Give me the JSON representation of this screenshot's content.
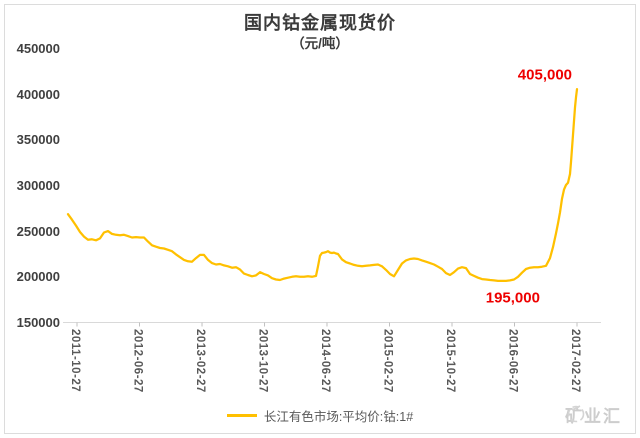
{
  "chart_data": {
    "type": "line",
    "title": "国内钴金属现货价",
    "subtitle": "（元/吨）",
    "ylabel": "",
    "xlabel": "",
    "ylim": [
      150000,
      450000
    ],
    "y_tick_step": 50000,
    "grid": false,
    "legend_position": "bottom",
    "line_color": "#FFC000",
    "annotation_color": "#EE0000",
    "y_ticks": [
      {
        "label": "450000",
        "value": 450000
      },
      {
        "label": "400000",
        "value": 400000
      },
      {
        "label": "350000",
        "value": 350000
      },
      {
        "label": "300000",
        "value": 300000
      },
      {
        "label": "250000",
        "value": 250000
      },
      {
        "label": "200000",
        "value": 200000
      },
      {
        "label": "150000",
        "value": 150000
      }
    ],
    "x_ticks": [
      {
        "label": "2011-10-27",
        "f": 0.0177
      },
      {
        "label": "2012-06-27",
        "f": 0.1405
      },
      {
        "label": "2013-02-27",
        "f": 0.2633
      },
      {
        "label": "2013-10-27",
        "f": 0.3861
      },
      {
        "label": "2014-06-27",
        "f": 0.5088
      },
      {
        "label": "2015-02-27",
        "f": 0.6316
      },
      {
        "label": "2015-10-27",
        "f": 0.7544
      },
      {
        "label": "2016-06-27",
        "f": 0.8772
      },
      {
        "label": "2017-02-27",
        "f": 1.0
      }
    ],
    "series": [
      {
        "name": "长江有色市场:平均价:钴:1#",
        "color": "#FFC000",
        "points": [
          [
            0.0,
            268000
          ],
          [
            0.0079,
            262000
          ],
          [
            0.0157,
            255500
          ],
          [
            0.0236,
            248500
          ],
          [
            0.0314,
            243500
          ],
          [
            0.0393,
            240000
          ],
          [
            0.0472,
            240500
          ],
          [
            0.055,
            239500
          ],
          [
            0.0629,
            241500
          ],
          [
            0.0707,
            248000
          ],
          [
            0.0786,
            249500
          ],
          [
            0.0864,
            246500
          ],
          [
            0.0943,
            245500
          ],
          [
            0.1022,
            245000
          ],
          [
            0.11,
            245500
          ],
          [
            0.1179,
            244000
          ],
          [
            0.1257,
            242500
          ],
          [
            0.1336,
            243000
          ],
          [
            0.1415,
            242500
          ],
          [
            0.1493,
            242500
          ],
          [
            0.1572,
            238000
          ],
          [
            0.165,
            234000
          ],
          [
            0.1729,
            232500
          ],
          [
            0.1808,
            231000
          ],
          [
            0.1886,
            230500
          ],
          [
            0.1965,
            229000
          ],
          [
            0.2043,
            227500
          ],
          [
            0.2122,
            224000
          ],
          [
            0.22,
            221000
          ],
          [
            0.2279,
            218000
          ],
          [
            0.2358,
            216500
          ],
          [
            0.2436,
            216000
          ],
          [
            0.2515,
            220000
          ],
          [
            0.2593,
            223500
          ],
          [
            0.2672,
            223500
          ],
          [
            0.275,
            218000
          ],
          [
            0.2829,
            214500
          ],
          [
            0.2908,
            213000
          ],
          [
            0.2986,
            213500
          ],
          [
            0.3065,
            212000
          ],
          [
            0.3143,
            211000
          ],
          [
            0.3222,
            209500
          ],
          [
            0.3301,
            210000
          ],
          [
            0.3379,
            207500
          ],
          [
            0.3458,
            203000
          ],
          [
            0.3536,
            201500
          ],
          [
            0.3615,
            200000
          ],
          [
            0.3693,
            201000
          ],
          [
            0.3772,
            204500
          ],
          [
            0.3851,
            202500
          ],
          [
            0.3929,
            201000
          ],
          [
            0.4008,
            198000
          ],
          [
            0.4086,
            196500
          ],
          [
            0.4165,
            196000
          ],
          [
            0.4244,
            197500
          ],
          [
            0.4322,
            198500
          ],
          [
            0.4401,
            199500
          ],
          [
            0.4479,
            200000
          ],
          [
            0.4558,
            199500
          ],
          [
            0.4637,
            199500
          ],
          [
            0.4715,
            200000
          ],
          [
            0.4794,
            199500
          ],
          [
            0.4872,
            200500
          ],
          [
            0.4912,
            211000
          ],
          [
            0.4951,
            222500
          ],
          [
            0.499,
            225500
          ],
          [
            0.5029,
            226000
          ],
          [
            0.5069,
            226500
          ],
          [
            0.5108,
            227500
          ],
          [
            0.5147,
            226000
          ],
          [
            0.5186,
            225500
          ],
          [
            0.5226,
            226000
          ],
          [
            0.5265,
            225000
          ],
          [
            0.5305,
            224500
          ],
          [
            0.5383,
            218500
          ],
          [
            0.5462,
            215500
          ],
          [
            0.554,
            214000
          ],
          [
            0.5619,
            212500
          ],
          [
            0.5698,
            211500
          ],
          [
            0.5776,
            211000
          ],
          [
            0.5855,
            211500
          ],
          [
            0.5933,
            212000
          ],
          [
            0.6012,
            212500
          ],
          [
            0.6091,
            213000
          ],
          [
            0.6169,
            211000
          ],
          [
            0.6248,
            207000
          ],
          [
            0.6326,
            202500
          ],
          [
            0.6405,
            200000
          ],
          [
            0.6483,
            207000
          ],
          [
            0.6562,
            214000
          ],
          [
            0.6641,
            217500
          ],
          [
            0.6719,
            219000
          ],
          [
            0.6798,
            219500
          ],
          [
            0.6876,
            219000
          ],
          [
            0.6955,
            217500
          ],
          [
            0.7034,
            216000
          ],
          [
            0.7112,
            214500
          ],
          [
            0.7191,
            213000
          ],
          [
            0.7269,
            210500
          ],
          [
            0.7348,
            208000
          ],
          [
            0.7426,
            203500
          ],
          [
            0.7505,
            201500
          ],
          [
            0.7584,
            204500
          ],
          [
            0.7662,
            208500
          ],
          [
            0.7741,
            210000
          ],
          [
            0.7819,
            209000
          ],
          [
            0.7898,
            202500
          ],
          [
            0.7976,
            200500
          ],
          [
            0.8055,
            198500
          ],
          [
            0.8134,
            197000
          ],
          [
            0.8212,
            196500
          ],
          [
            0.8291,
            196000
          ],
          [
            0.8369,
            195500
          ],
          [
            0.8448,
            195000
          ],
          [
            0.8527,
            195000
          ],
          [
            0.8605,
            195000
          ],
          [
            0.8684,
            195500
          ],
          [
            0.8762,
            196500
          ],
          [
            0.8841,
            199500
          ],
          [
            0.8919,
            204000
          ],
          [
            0.8998,
            208000
          ],
          [
            0.9077,
            209500
          ],
          [
            0.9155,
            210000
          ],
          [
            0.9234,
            210000
          ],
          [
            0.9312,
            210500
          ],
          [
            0.9391,
            211500
          ],
          [
            0.947,
            220000
          ],
          [
            0.9529,
            232000
          ],
          [
            0.9588,
            247000
          ],
          [
            0.9627,
            258000
          ],
          [
            0.9666,
            270000
          ],
          [
            0.9706,
            285000
          ],
          [
            0.9745,
            295000
          ],
          [
            0.9784,
            300000
          ],
          [
            0.9823,
            302500
          ],
          [
            0.9862,
            312000
          ],
          [
            0.9882,
            325000
          ],
          [
            0.9902,
            340000
          ],
          [
            0.9921,
            355000
          ],
          [
            0.9941,
            370000
          ],
          [
            0.9961,
            385000
          ],
          [
            0.998,
            396000
          ],
          [
            1.0,
            405000
          ]
        ]
      }
    ],
    "annotations": [
      {
        "text": "405,000",
        "f": 0.937,
        "value": 420000
      },
      {
        "text": "195,000",
        "f": 0.874,
        "value": 176000
      }
    ]
  },
  "legend": {
    "swatch_color": "#FFC000"
  },
  "watermark": {
    "text": "矿业汇"
  }
}
